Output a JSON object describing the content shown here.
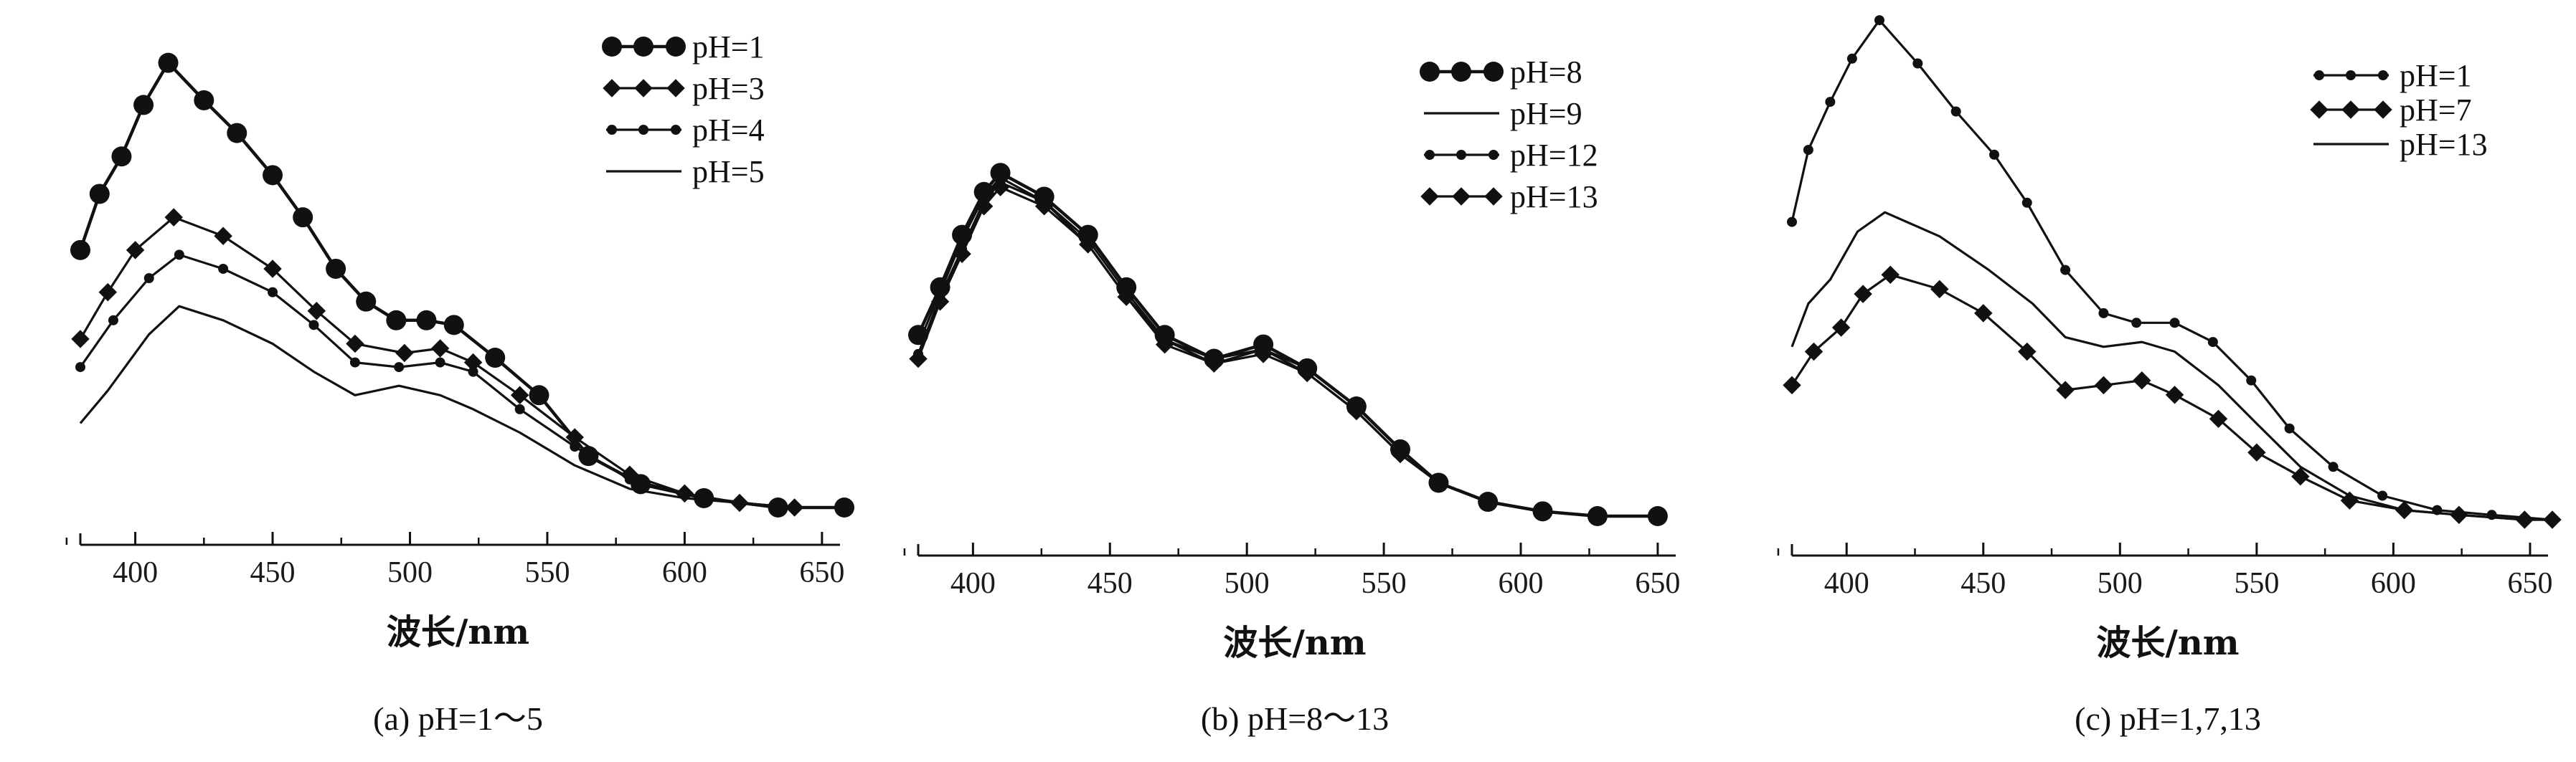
{
  "chart_data": [
    {
      "type": "line",
      "caption": "(a) pH=1～5",
      "xlabel": "波长/nm",
      "ylabel": "",
      "xlim": [
        380,
        655
      ],
      "ylim": [
        0,
        100
      ],
      "xticks": [
        "400",
        "450",
        "500",
        "550",
        "600",
        "650"
      ],
      "legend_position": "top-right",
      "series": [
        {
          "name": "pH=1",
          "marker": "circle-large",
          "x": [
            380,
            387,
            395,
            403,
            412,
            425,
            437,
            450,
            461,
            473,
            484,
            495,
            506,
            516,
            531,
            547,
            565,
            584,
            607,
            634,
            660
          ],
          "y": [
            55,
            67,
            75,
            86,
            95,
            87,
            80,
            71,
            62,
            51,
            44,
            40,
            40,
            39,
            32,
            24,
            11,
            5,
            2,
            0,
            0
          ]
        },
        {
          "name": "pH=3",
          "marker": "square",
          "x": [
            380,
            390,
            400,
            414,
            432,
            450,
            466,
            480,
            498,
            511,
            523,
            540,
            560,
            580,
            600,
            620,
            640,
            660
          ],
          "y": [
            36,
            46,
            55,
            62,
            58,
            51,
            42,
            35,
            33,
            34,
            31,
            24,
            15,
            7,
            3,
            1,
            0,
            0
          ]
        },
        {
          "name": "pH=4",
          "marker": "dot",
          "x": [
            380,
            392,
            405,
            416,
            432,
            450,
            465,
            480,
            496,
            511,
            523,
            540,
            560,
            580,
            600,
            620,
            640,
            660
          ],
          "y": [
            30,
            40,
            49,
            54,
            51,
            46,
            39,
            31,
            30,
            31,
            29,
            21,
            13,
            6,
            3,
            1,
            0,
            0
          ]
        },
        {
          "name": "pH=5",
          "marker": "none",
          "x": [
            380,
            390,
            405,
            416,
            432,
            450,
            465,
            480,
            496,
            511,
            523,
            540,
            560,
            580,
            600,
            620,
            640,
            660
          ],
          "y": [
            18,
            25,
            37,
            43,
            40,
            35,
            29,
            24,
            26,
            24,
            21,
            16,
            9,
            4,
            2,
            1,
            0,
            0
          ]
        }
      ]
    },
    {
      "type": "line",
      "caption": "(b) pH=8～13",
      "xlabel": "波长/nm",
      "ylabel": "",
      "xlim": [
        380,
        655
      ],
      "ylim": [
        0,
        100
      ],
      "xticks": [
        "400",
        "450",
        "500",
        "550",
        "600",
        "650"
      ],
      "legend_position": "top-right",
      "series": [
        {
          "name": "pH=8",
          "marker": "circle-large",
          "x": [
            380,
            388,
            396,
            404,
            410,
            426,
            442,
            456,
            470,
            488,
            506,
            522,
            540,
            556,
            570,
            588,
            608,
            628,
            650
          ],
          "y": [
            38,
            48,
            59,
            68,
            72,
            67,
            59,
            48,
            38,
            33,
            36,
            31,
            23,
            14,
            7,
            3,
            1,
            0,
            0
          ]
        },
        {
          "name": "pH=9",
          "marker": "none",
          "x": [
            380,
            388,
            396,
            404,
            410,
            426,
            442,
            456,
            470,
            488,
            506,
            522,
            540,
            556,
            570,
            588,
            608,
            628,
            650
          ],
          "y": [
            36,
            47,
            58,
            67,
            71,
            66,
            58,
            47,
            37,
            33,
            35,
            31,
            23,
            14,
            7,
            3,
            1,
            0,
            0
          ]
        },
        {
          "name": "pH=12",
          "marker": "dot",
          "x": [
            380,
            388,
            396,
            404,
            410,
            426,
            442,
            456,
            470,
            488,
            506,
            522,
            540,
            556,
            570,
            588,
            608,
            628,
            650
          ],
          "y": [
            34,
            46,
            56,
            66,
            70,
            66,
            57,
            46,
            37,
            32,
            35,
            30,
            22,
            13,
            7,
            3,
            1,
            0,
            0
          ]
        },
        {
          "name": "pH=13",
          "marker": "square",
          "x": [
            380,
            388,
            396,
            404,
            410,
            426,
            442,
            456,
            470,
            488,
            506,
            522,
            540,
            556,
            570,
            588,
            608,
            628,
            650
          ],
          "y": [
            33,
            45,
            55,
            65,
            69,
            65,
            57,
            46,
            36,
            32,
            34,
            30,
            22,
            13,
            7,
            3,
            1,
            0,
            0
          ]
        }
      ]
    },
    {
      "type": "line",
      "caption": "(c) pH=1,7,13",
      "xlabel": "波长/nm",
      "ylabel": "",
      "xlim": [
        380,
        655
      ],
      "ylim": [
        0,
        100
      ],
      "xticks": [
        "400",
        "450",
        "500",
        "550",
        "600",
        "650"
      ],
      "legend_position": "top-right",
      "series": [
        {
          "name": "pH=1",
          "marker": "dot",
          "x": [
            380,
            386,
            394,
            402,
            412,
            426,
            440,
            454,
            466,
            480,
            494,
            506,
            520,
            534,
            548,
            562,
            578,
            596,
            616,
            636,
            660
          ],
          "y": [
            62,
            77,
            87,
            96,
            104,
            95,
            85,
            76,
            66,
            52,
            43,
            41,
            41,
            37,
            29,
            19,
            11,
            5,
            2,
            1,
            0
          ]
        },
        {
          "name": "pH=7",
          "marker": "square",
          "x": [
            380,
            388,
            398,
            406,
            416,
            434,
            450,
            466,
            480,
            494,
            508,
            520,
            536,
            550,
            566,
            584,
            604,
            624,
            648,
            660
          ],
          "y": [
            28,
            35,
            40,
            47,
            51,
            48,
            43,
            35,
            27,
            28,
            29,
            26,
            21,
            14,
            9,
            4,
            2,
            1,
            0,
            0
          ]
        },
        {
          "name": "pH=13",
          "marker": "none",
          "x": [
            380,
            386,
            394,
            404,
            414,
            434,
            452,
            468,
            480,
            494,
            508,
            520,
            536,
            550,
            566,
            584,
            604,
            624,
            648,
            660
          ],
          "y": [
            36,
            45,
            50,
            60,
            64,
            59,
            52,
            45,
            38,
            36,
            37,
            35,
            28,
            20,
            11,
            5,
            2,
            1,
            0,
            0
          ]
        }
      ]
    }
  ]
}
